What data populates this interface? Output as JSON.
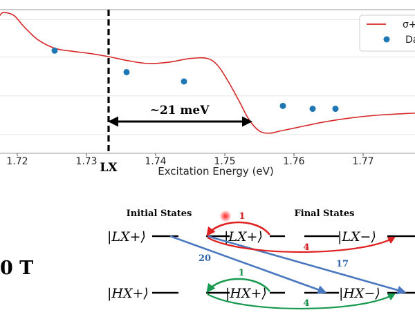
{
  "chart_data": {
    "type": "line",
    "xlabel": "Excitation Energy (eV)",
    "xlim": [
      1.7175,
      1.7775
    ],
    "ylim": [
      0.0,
      1.0
    ],
    "x_ticks": [
      "1.72",
      "1.73",
      "1.74",
      "1.75",
      "1.76",
      "1.77"
    ],
    "x_tick_values": [
      1.72,
      1.73,
      1.74,
      1.75,
      1.76,
      1.77
    ],
    "grid": "y-only",
    "legend_position": "top-right",
    "legend": [
      "σ+",
      "Da"
    ],
    "series": [
      {
        "name": "σ+",
        "kind": "line",
        "color": "#d62728",
        "x": [
          1.7175,
          1.718,
          1.7195,
          1.721,
          1.723,
          1.7255,
          1.728,
          1.7305,
          1.733,
          1.736,
          1.739,
          1.742,
          1.745,
          1.7475,
          1.749,
          1.7505,
          1.752,
          1.7535,
          1.755,
          1.7565,
          1.758,
          1.7605,
          1.764,
          1.768,
          1.772,
          1.7775
        ],
        "y": [
          0.96,
          0.98,
          0.96,
          0.88,
          0.79,
          0.73,
          0.71,
          0.695,
          0.675,
          0.645,
          0.625,
          0.635,
          0.66,
          0.66,
          0.61,
          0.5,
          0.37,
          0.235,
          0.155,
          0.14,
          0.155,
          0.18,
          0.215,
          0.245,
          0.265,
          0.28
        ]
      },
      {
        "name": "Da",
        "kind": "scatter",
        "color": "#1f77b4",
        "x": [
          1.7254,
          1.7358,
          1.7441,
          1.7584,
          1.7627,
          1.766
        ],
        "y": [
          0.715,
          0.565,
          0.5,
          0.33,
          0.31,
          0.31
        ]
      }
    ],
    "annotations": {
      "vline_x": 1.7332,
      "vline_label": "LX",
      "arrow_from_x": 1.7332,
      "arrow_to_x": 1.7537,
      "arrow_label": "~21 meV"
    }
  },
  "diagram": {
    "field_label": "0 T",
    "initial_title": "Initial States",
    "final_title": "Final States",
    "states": {
      "lx_plus_left": "|LX+⟩",
      "lx_plus_right": "|LX+⟩",
      "lx_minus": "|LX−⟩",
      "hx_plus_left": "|HX+⟩",
      "hx_plus_right": "|HX+⟩",
      "hx_minus": "|HX−⟩"
    },
    "rates": {
      "red_top": "1",
      "red_bottom": "4",
      "green_top": "1",
      "green_bottom": "4",
      "blue_a": "20",
      "blue_b": "17"
    },
    "colors": {
      "red": "#e02020",
      "green": "#1a9a50",
      "blue": "#4a78c0",
      "label_red": "#d42020",
      "label_green": "#1a8f4a",
      "label_blue": "#2f64a8"
    }
  }
}
